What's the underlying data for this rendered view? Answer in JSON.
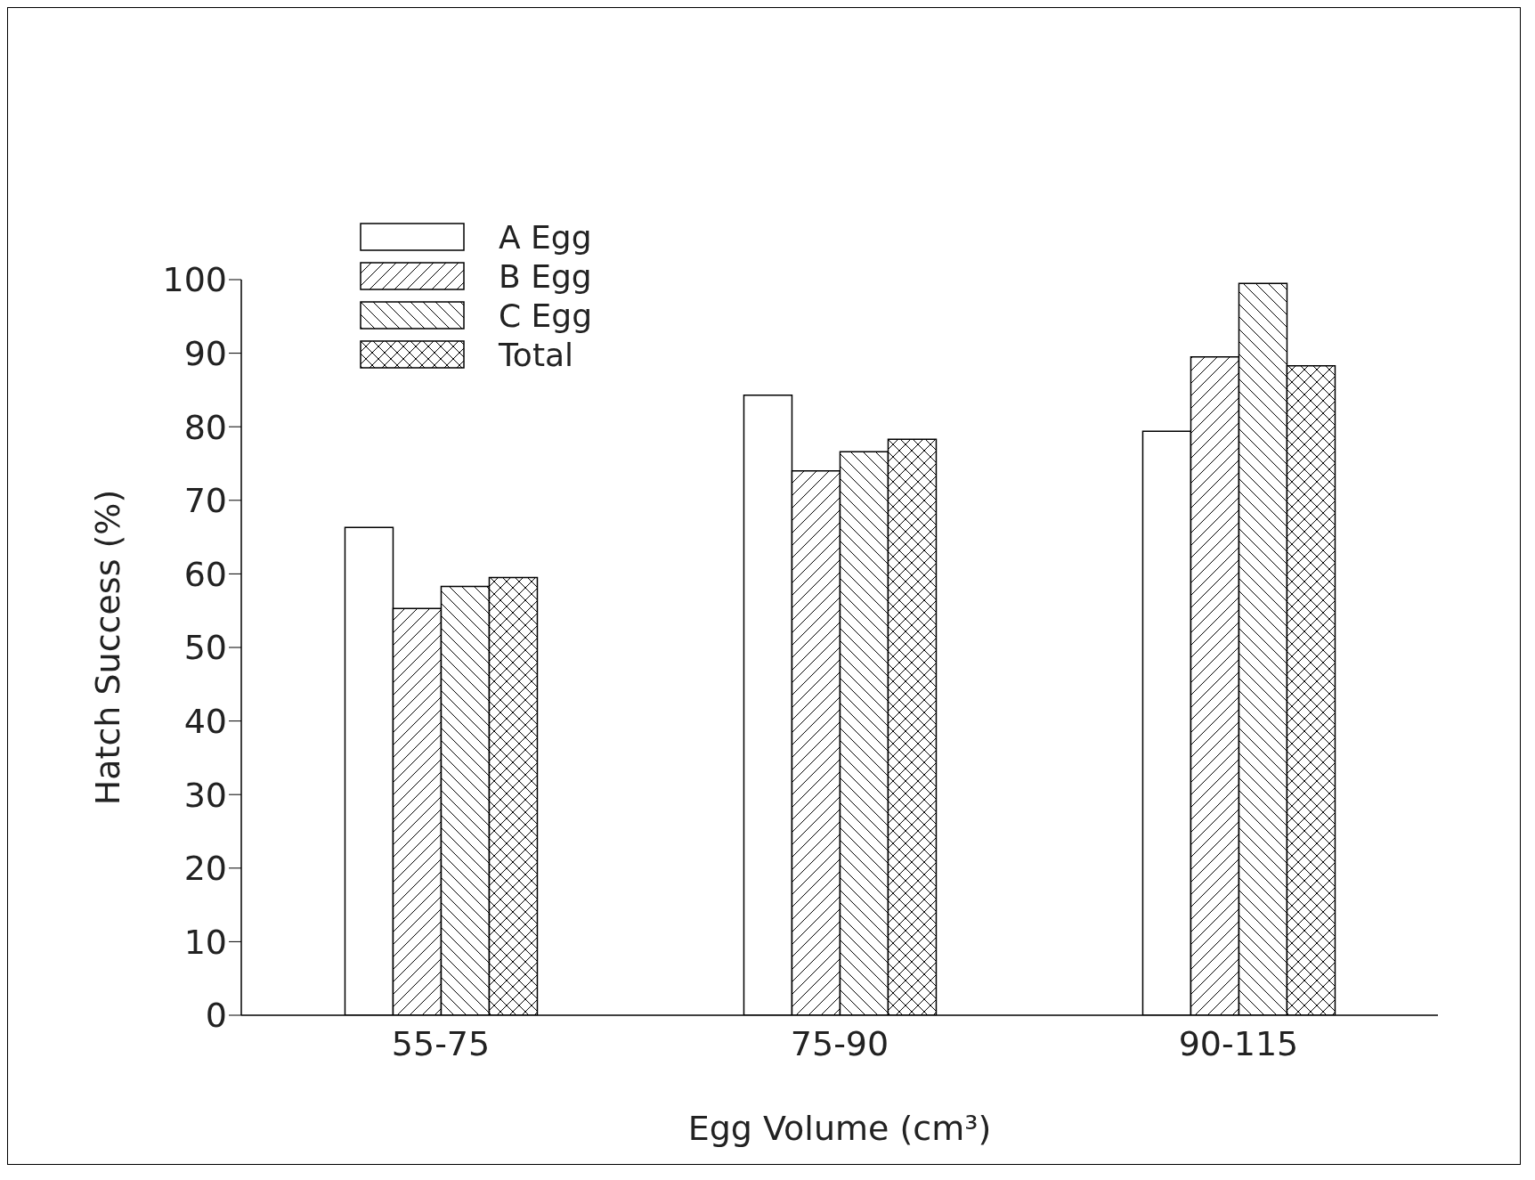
{
  "chart_data": {
    "type": "bar",
    "xlabel": "Egg Volume (cm³)",
    "ylabel": "Hatch Success (%)",
    "categories": [
      "55-75",
      "75-90",
      "90-115"
    ],
    "series": [
      {
        "name": "A Egg",
        "color": "#000000",
        "values": [
          66.3,
          84.3,
          79.4
        ]
      },
      {
        "name": "B Egg",
        "color": "#000000",
        "values": [
          55.3,
          74.0,
          89.5
        ]
      },
      {
        "name": "C Egg",
        "color": "#000000",
        "values": [
          58.3,
          76.6,
          99.5
        ]
      },
      {
        "name": "Total",
        "color": "#000000",
        "values": [
          59.5,
          78.3,
          88.3
        ]
      }
    ],
    "ylim": [
      0,
      100
    ],
    "yticks": [
      0,
      10,
      20,
      30,
      40,
      50,
      60,
      70,
      80,
      90,
      100
    ],
    "grid": false,
    "legend": "top left"
  }
}
